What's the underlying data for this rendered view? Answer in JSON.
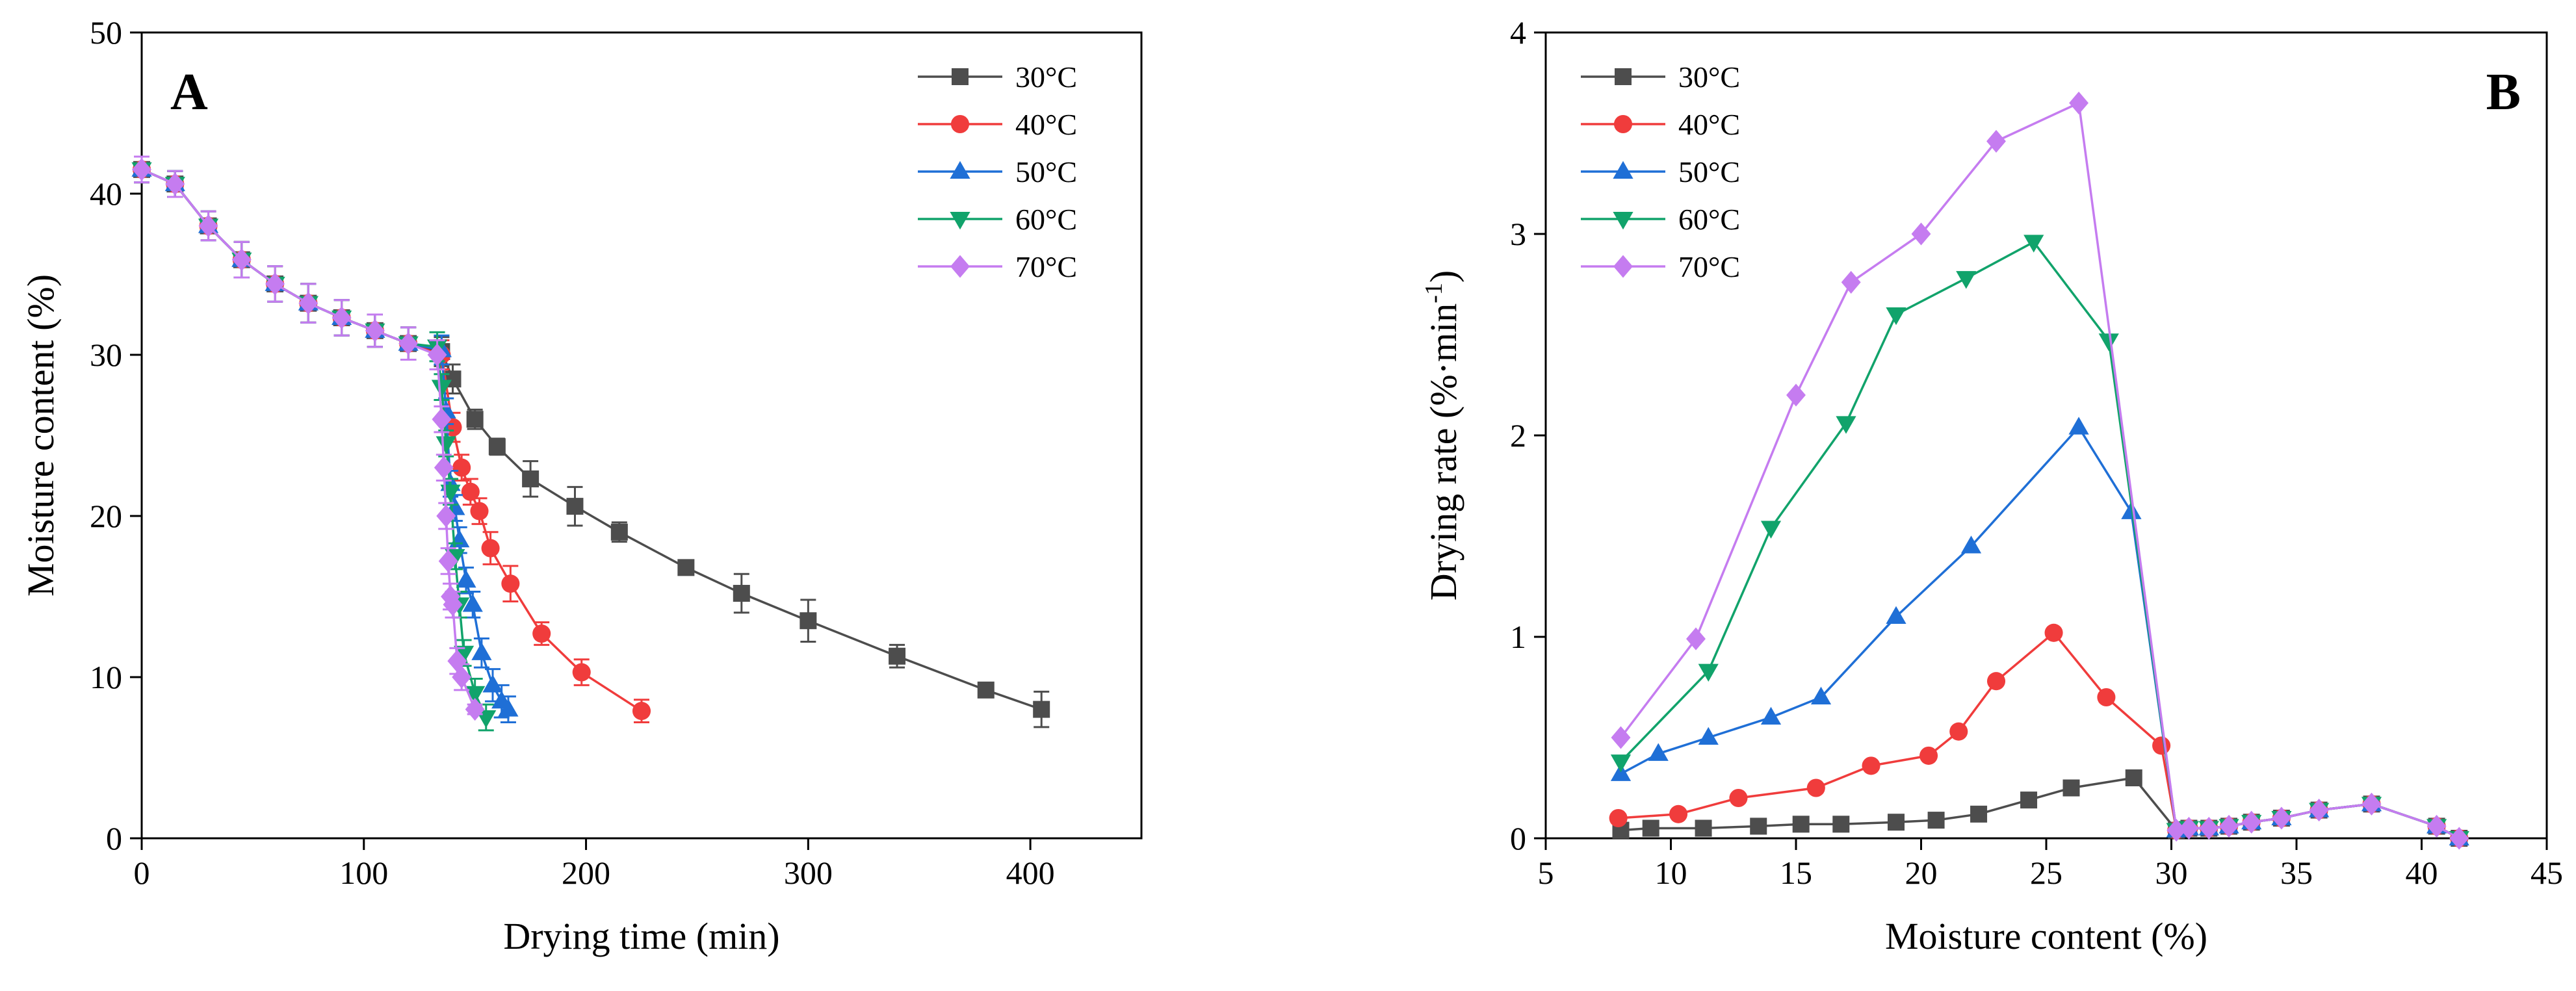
{
  "chart_data": [
    {
      "type": "line",
      "panel_label": "A",
      "xlabel": "Drying time (min)",
      "ylabel": "Moisture content (%)",
      "xlim": [
        0,
        450
      ],
      "ylim": [
        0,
        50
      ],
      "xticks": [
        0,
        100,
        200,
        300,
        400
      ],
      "yticks": [
        0,
        10,
        20,
        30,
        40,
        50
      ],
      "legend_position": "top-right",
      "grid": false,
      "error_bars": true,
      "series": [
        {
          "name": "30°C",
          "color": "#4d4d4d",
          "marker": "square",
          "x": [
            0,
            15,
            30,
            45,
            60,
            75,
            90,
            105,
            120,
            135,
            140,
            150,
            160,
            175,
            195,
            215,
            245,
            270,
            300,
            340,
            380,
            405
          ],
          "y": [
            41.5,
            40.6,
            38.0,
            35.9,
            34.4,
            33.2,
            32.3,
            31.5,
            30.7,
            30.2,
            28.5,
            26.0,
            24.3,
            22.3,
            20.6,
            19.0,
            16.8,
            15.2,
            13.5,
            11.3,
            9.2,
            8.0
          ],
          "err": [
            0.8,
            0.8,
            0.9,
            1.1,
            1.1,
            1.2,
            1.1,
            1.0,
            1.0,
            0.9,
            0.9,
            0.6,
            0.5,
            1.1,
            1.2,
            0.6,
            0.3,
            1.2,
            1.3,
            0.7,
            0.3,
            1.1
          ]
        },
        {
          "name": "40°C",
          "color": "#f03c3c",
          "marker": "circle",
          "x": [
            0,
            15,
            30,
            45,
            60,
            75,
            90,
            105,
            120,
            135,
            140,
            144,
            148,
            152,
            157,
            166,
            180,
            198,
            225
          ],
          "y": [
            41.5,
            40.6,
            38.0,
            35.9,
            34.4,
            33.2,
            32.3,
            31.5,
            30.7,
            30.0,
            25.5,
            23.0,
            21.5,
            20.3,
            18.0,
            15.8,
            12.7,
            10.3,
            7.9
          ],
          "err": [
            0.8,
            0.8,
            0.9,
            1.1,
            1.1,
            1.2,
            1.1,
            1.0,
            1.0,
            0.9,
            0.9,
            0.8,
            0.8,
            0.8,
            1.0,
            1.1,
            0.7,
            0.8,
            0.7
          ]
        },
        {
          "name": "50°C",
          "color": "#1f6fd6",
          "marker": "triangle-up",
          "x": [
            0,
            15,
            30,
            45,
            60,
            75,
            90,
            105,
            120,
            135,
            137,
            139,
            141,
            143,
            146,
            149,
            153,
            158,
            162,
            165
          ],
          "y": [
            41.5,
            40.6,
            38.0,
            35.9,
            34.4,
            33.2,
            32.3,
            31.5,
            30.7,
            30.3,
            26.5,
            22.0,
            20.5,
            18.5,
            16.0,
            14.5,
            11.5,
            9.5,
            8.5,
            8.0
          ],
          "err": [
            0.8,
            0.8,
            0.9,
            1.1,
            1.1,
            1.2,
            1.1,
            1.0,
            1.0,
            0.9,
            0.8,
            0.8,
            0.8,
            0.8,
            0.8,
            0.8,
            0.9,
            1.0,
            1.0,
            0.8
          ]
        },
        {
          "name": "60°C",
          "color": "#11a36b",
          "marker": "triangle-down",
          "x": [
            0,
            15,
            30,
            45,
            60,
            75,
            90,
            105,
            120,
            133,
            135,
            137,
            139,
            141,
            143,
            145,
            150,
            155
          ],
          "y": [
            41.5,
            40.6,
            38.0,
            35.9,
            34.4,
            33.2,
            32.3,
            31.5,
            30.7,
            30.5,
            28.0,
            24.5,
            21.5,
            17.5,
            14.5,
            11.5,
            9.0,
            7.5
          ],
          "err": [
            0.8,
            0.8,
            0.9,
            1.1,
            1.1,
            1.2,
            1.1,
            1.0,
            1.0,
            0.9,
            0.8,
            0.8,
            0.8,
            0.8,
            0.8,
            0.8,
            0.9,
            0.8
          ]
        },
        {
          "name": "70°C",
          "color": "#c57cf0",
          "marker": "diamond",
          "x": [
            0,
            15,
            30,
            45,
            60,
            75,
            90,
            105,
            120,
            133,
            135,
            136,
            137,
            138,
            139,
            140,
            142,
            144,
            150
          ],
          "y": [
            41.5,
            40.6,
            38.0,
            35.9,
            34.4,
            33.2,
            32.3,
            31.5,
            30.7,
            30.0,
            26.0,
            23.0,
            20.0,
            17.2,
            15.0,
            14.5,
            11.0,
            10.0,
            8.0
          ],
          "err": [
            0.8,
            0.8,
            0.9,
            1.1,
            1.1,
            1.2,
            1.1,
            1.0,
            1.0,
            0.9,
            0.8,
            0.8,
            0.8,
            0.8,
            0.8,
            0.8,
            0.8,
            0.8,
            0.3
          ]
        }
      ]
    },
    {
      "type": "line",
      "panel_label": "B",
      "xlabel": "Moisture content (%)",
      "ylabel": "Drying rate (%·min",
      "ylabel_superscript": "-1",
      "ylabel_suffix": ")",
      "xlim": [
        5,
        45
      ],
      "ylim": [
        0,
        4
      ],
      "xticks": [
        5,
        10,
        15,
        20,
        25,
        30,
        35,
        40,
        45
      ],
      "yticks": [
        0,
        1,
        2,
        3,
        4
      ],
      "legend_position": "top-left",
      "grid": false,
      "series": [
        {
          "name": "30°C",
          "color": "#4d4d4d",
          "marker": "square",
          "x": [
            8.0,
            9.2,
            11.3,
            13.5,
            15.2,
            16.8,
            19.0,
            20.6,
            22.3,
            24.3,
            26.0,
            28.5,
            30.2,
            30.7,
            31.5,
            32.3,
            33.2,
            34.4,
            35.9,
            38.0,
            40.6,
            41.5
          ],
          "y": [
            0.04,
            0.05,
            0.05,
            0.06,
            0.07,
            0.07,
            0.08,
            0.09,
            0.12,
            0.19,
            0.25,
            0.3,
            0.04,
            0.05,
            0.05,
            0.06,
            0.08,
            0.1,
            0.14,
            0.17,
            0.06,
            0.0
          ]
        },
        {
          "name": "40°C",
          "color": "#f03c3c",
          "marker": "circle",
          "x": [
            7.9,
            10.3,
            12.7,
            15.8,
            18.0,
            20.3,
            21.5,
            23.0,
            25.3,
            27.4,
            29.6,
            30.2,
            30.7,
            31.5,
            32.3,
            33.2,
            34.4,
            35.9,
            38.0,
            40.6,
            41.5
          ],
          "y": [
            0.1,
            0.12,
            0.2,
            0.25,
            0.36,
            0.41,
            0.53,
            0.78,
            1.02,
            0.7,
            0.46,
            0.04,
            0.05,
            0.05,
            0.06,
            0.08,
            0.1,
            0.14,
            0.17,
            0.06,
            0.0
          ]
        },
        {
          "name": "50°C",
          "color": "#1f6fd6",
          "marker": "triangle-up",
          "x": [
            8.0,
            9.5,
            11.5,
            14.0,
            16.0,
            19.0,
            22.0,
            26.3,
            28.4,
            30.2,
            30.7,
            31.5,
            32.3,
            33.2,
            34.4,
            35.9,
            38.0,
            40.6,
            41.5
          ],
          "y": [
            0.32,
            0.42,
            0.5,
            0.6,
            0.7,
            1.1,
            1.45,
            2.04,
            1.62,
            0.04,
            0.05,
            0.05,
            0.06,
            0.08,
            0.1,
            0.14,
            0.17,
            0.06,
            0.0
          ]
        },
        {
          "name": "60°C",
          "color": "#11a36b",
          "marker": "triangle-down",
          "x": [
            8.0,
            11.5,
            14.0,
            17.0,
            19.0,
            21.8,
            24.5,
            27.5,
            30.2,
            30.7,
            31.5,
            32.3,
            33.2,
            34.4,
            35.9,
            38.0,
            40.6,
            41.5
          ],
          "y": [
            0.38,
            0.83,
            1.54,
            2.06,
            2.6,
            2.78,
            2.96,
            2.47,
            0.04,
            0.05,
            0.05,
            0.06,
            0.08,
            0.1,
            0.14,
            0.17,
            0.06,
            0.0
          ]
        },
        {
          "name": "70°C",
          "color": "#c57cf0",
          "marker": "diamond",
          "x": [
            8.0,
            11.0,
            15.0,
            17.2,
            20.0,
            23.0,
            26.3,
            30.2,
            30.7,
            31.5,
            32.3,
            33.2,
            34.4,
            35.9,
            38.0,
            40.6,
            41.5
          ],
          "y": [
            0.5,
            0.99,
            2.2,
            2.76,
            3.0,
            3.46,
            3.65,
            0.04,
            0.05,
            0.05,
            0.06,
            0.08,
            0.1,
            0.14,
            0.17,
            0.06,
            0.0
          ]
        }
      ]
    }
  ]
}
